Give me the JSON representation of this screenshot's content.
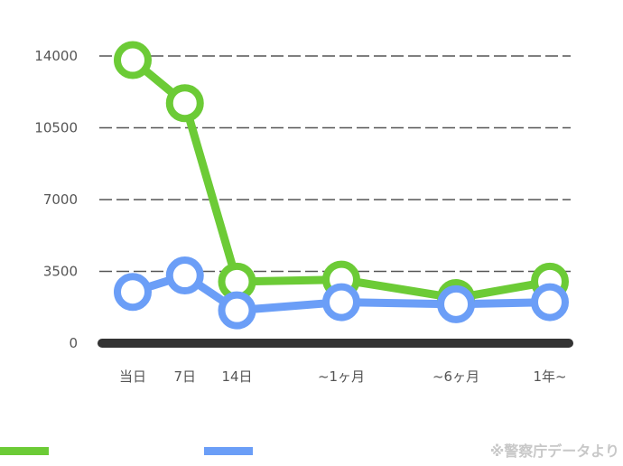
{
  "chart_data": {
    "type": "line",
    "categories": [
      "当日",
      "7日",
      "14日",
      "~1ヶ月",
      "~6ヶ月",
      "1年~"
    ],
    "x_index": [
      0,
      1,
      2,
      4,
      6.2,
      8
    ],
    "y_ticks": [
      "14000",
      "10500",
      "7000",
      "3500",
      "0"
    ],
    "y_tick_values": [
      14000,
      10500,
      7000,
      3500,
      0
    ],
    "ylim": [
      0,
      14000
    ],
    "grid": true,
    "series": [
      {
        "values": [
          13800,
          11700,
          3000,
          3100,
          2200,
          3000
        ],
        "color": "#6ccb36"
      },
      {
        "values": [
          2500,
          3300,
          1600,
          2000,
          1900,
          2000
        ],
        "color": "#6b9ef7"
      }
    ]
  },
  "source_note": "※警察庁データより"
}
